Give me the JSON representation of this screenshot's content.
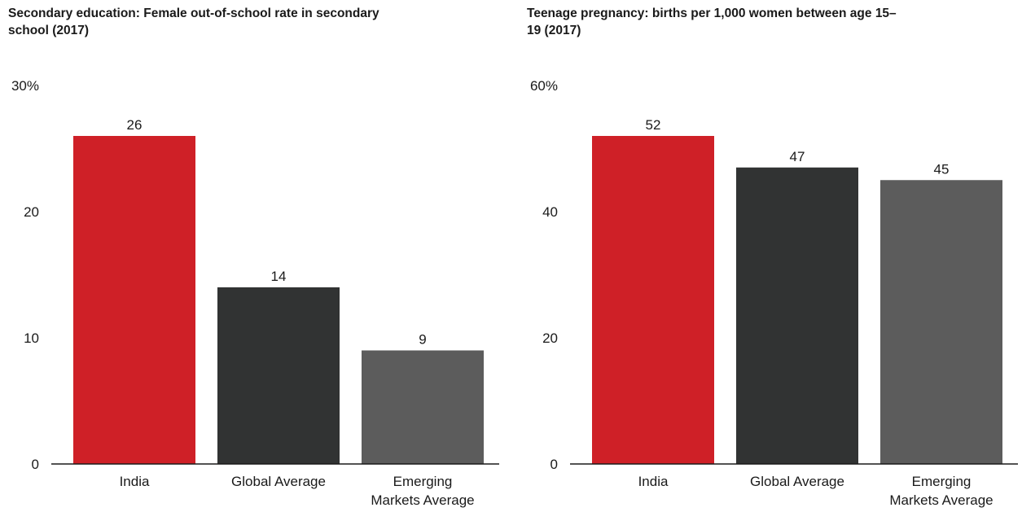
{
  "colors": {
    "india": "#cf2027",
    "global": "#313333",
    "emerging": "#5c5c5c",
    "axis": "#1a1a1a"
  },
  "chart_data": [
    {
      "type": "bar",
      "title": "Secondary education: Female out-of-school rate in secondary school (2017)",
      "categories": [
        "India",
        "Global Average",
        "Emerging Markets Average"
      ],
      "values": [
        26,
        14,
        9
      ],
      "value_labels": [
        "26",
        "14",
        "9"
      ],
      "ylim": [
        0,
        30
      ],
      "yticks": [
        0,
        10,
        20,
        30
      ],
      "ytick_labels": [
        "0",
        "10",
        "20",
        "30%"
      ],
      "bar_colors": [
        "#cf2027",
        "#313333",
        "#5c5c5c"
      ],
      "grid": false,
      "xlabel": "",
      "ylabel": ""
    },
    {
      "type": "bar",
      "title": "Teenage pregnancy: births per 1,000 women between age 15–19 (2017)",
      "categories": [
        "India",
        "Global Average",
        "Emerging Markets Average"
      ],
      "values": [
        52,
        47,
        45
      ],
      "value_labels": [
        "52",
        "47",
        "45"
      ],
      "ylim": [
        0,
        60
      ],
      "yticks": [
        0,
        20,
        40,
        60
      ],
      "ytick_labels": [
        "0",
        "20",
        "40",
        "60%"
      ],
      "bar_colors": [
        "#cf2027",
        "#313333",
        "#5c5c5c"
      ],
      "grid": false,
      "xlabel": "",
      "ylabel": ""
    }
  ]
}
